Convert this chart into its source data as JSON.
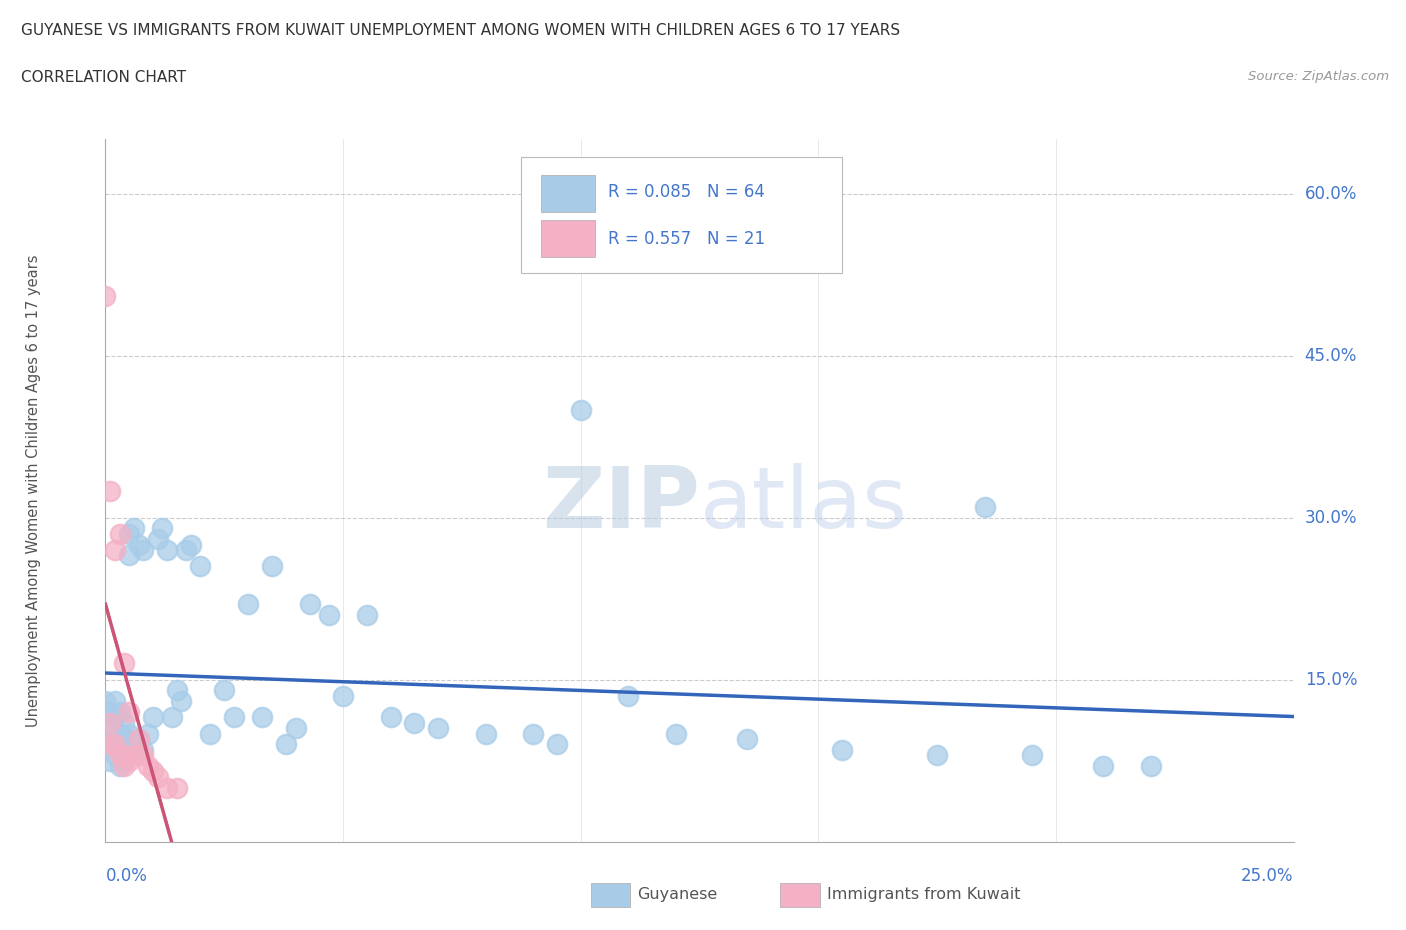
{
  "title": "GUYANESE VS IMMIGRANTS FROM KUWAIT UNEMPLOYMENT AMONG WOMEN WITH CHILDREN AGES 6 TO 17 YEARS",
  "subtitle": "CORRELATION CHART",
  "source": "Source: ZipAtlas.com",
  "ylabel_label": "Unemployment Among Women with Children Ages 6 to 17 years",
  "watermark": "ZIPatlas",
  "legend1_label": "Guyanese",
  "legend2_label": "Immigrants from Kuwait",
  "R1": 0.085,
  "N1": 64,
  "R2": 0.557,
  "N2": 21,
  "color_blue": "#a8cce8",
  "color_pink": "#f4b0c4",
  "color_blue_text": "#4477cc",
  "color_trendline_blue": "#3366bb",
  "color_trendline_pink": "#cc5577",
  "color_grid": "#cccccc",
  "color_title": "#333333",
  "color_source": "#999999",
  "color_ylabel": "#555555",
  "color_watermark": "#ccddf5",
  "xlim_min": 0.0,
  "xlim_max": 0.25,
  "ylim_min": 0.0,
  "ylim_max": 0.65,
  "ytick_positions": [
    0.15,
    0.3,
    0.45,
    0.6
  ],
  "ytick_labels": [
    "15.0%",
    "30.0%",
    "45.0%",
    "60.0%"
  ],
  "xtick_left_label": "0.0%",
  "xtick_right_label": "25.0%",
  "guyanese_x": [
    0.0,
    0.001,
    0.001,
    0.001,
    0.001,
    0.002,
    0.002,
    0.002,
    0.002,
    0.003,
    0.003,
    0.003,
    0.003,
    0.004,
    0.004,
    0.004,
    0.005,
    0.005,
    0.005,
    0.006,
    0.006,
    0.007,
    0.007,
    0.008,
    0.008,
    0.009,
    0.01,
    0.011,
    0.012,
    0.013,
    0.014,
    0.015,
    0.016,
    0.017,
    0.018,
    0.02,
    0.022,
    0.025,
    0.027,
    0.03,
    0.033,
    0.035,
    0.038,
    0.04,
    0.043,
    0.047,
    0.05,
    0.055,
    0.06,
    0.065,
    0.07,
    0.08,
    0.09,
    0.095,
    0.1,
    0.11,
    0.12,
    0.135,
    0.155,
    0.175,
    0.185,
    0.195,
    0.21,
    0.22
  ],
  "guyanese_y": [
    0.13,
    0.12,
    0.105,
    0.09,
    0.075,
    0.13,
    0.115,
    0.095,
    0.08,
    0.12,
    0.1,
    0.085,
    0.07,
    0.11,
    0.095,
    0.075,
    0.285,
    0.265,
    0.1,
    0.29,
    0.085,
    0.275,
    0.095,
    0.27,
    0.085,
    0.1,
    0.115,
    0.28,
    0.29,
    0.27,
    0.115,
    0.14,
    0.13,
    0.27,
    0.275,
    0.255,
    0.1,
    0.14,
    0.115,
    0.22,
    0.115,
    0.255,
    0.09,
    0.105,
    0.22,
    0.21,
    0.135,
    0.21,
    0.115,
    0.11,
    0.105,
    0.1,
    0.1,
    0.09,
    0.4,
    0.135,
    0.1,
    0.095,
    0.085,
    0.08,
    0.31,
    0.08,
    0.07,
    0.07
  ],
  "kuwait_x": [
    0.0,
    0.001,
    0.001,
    0.001,
    0.002,
    0.002,
    0.003,
    0.003,
    0.004,
    0.004,
    0.004,
    0.005,
    0.005,
    0.006,
    0.007,
    0.008,
    0.009,
    0.01,
    0.011,
    0.013,
    0.015
  ],
  "kuwait_y": [
    0.505,
    0.325,
    0.11,
    0.09,
    0.27,
    0.09,
    0.285,
    0.08,
    0.165,
    0.08,
    0.07,
    0.12,
    0.075,
    0.08,
    0.095,
    0.08,
    0.07,
    0.065,
    0.06,
    0.05,
    0.05
  ]
}
